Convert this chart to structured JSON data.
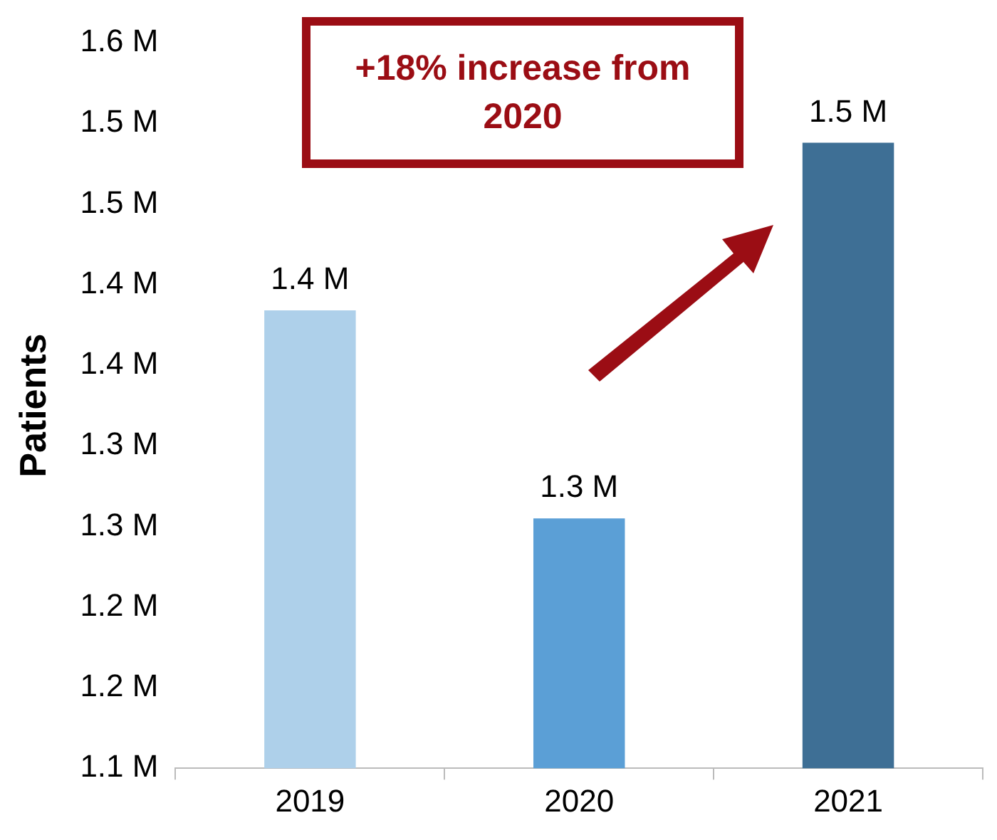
{
  "chart_data": {
    "type": "bar",
    "ylabel": "Patients",
    "categories": [
      "2019",
      "2020",
      "2021"
    ],
    "values": [
      1.384,
      1.255,
      1.488
    ],
    "colors": [
      "#aed0ea",
      "#5b9fd6",
      "#3e6f95"
    ],
    "value_labels": [
      "1.4 M",
      "1.3 M",
      "1.5 M"
    ],
    "ylim": [
      1.1,
      1.55
    ],
    "yticks": [
      {
        "value": 1.1,
        "label": "1.1 M"
      },
      {
        "value": 1.15,
        "label": "1.2 M"
      },
      {
        "value": 1.2,
        "label": "1.2 M"
      },
      {
        "value": 1.25,
        "label": "1.3 M"
      },
      {
        "value": 1.3,
        "label": "1.3 M"
      },
      {
        "value": 1.35,
        "label": "1.4 M"
      },
      {
        "value": 1.4,
        "label": "1.4 M"
      },
      {
        "value": 1.45,
        "label": "1.5 M"
      },
      {
        "value": 1.5,
        "label": "1.5 M"
      },
      {
        "value": 1.55,
        "label": "1.6 M"
      }
    ],
    "grid": false,
    "legend": false,
    "annotations": [
      "+18% increase from 2020"
    ]
  }
}
